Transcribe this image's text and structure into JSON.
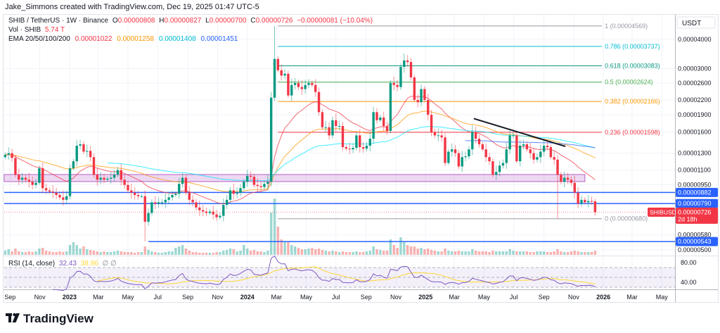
{
  "header": {
    "author_line": "Jake_Simmons created with TradingView.com, Dec 19, 2025 01:47 UTC-5"
  },
  "legend": {
    "symbol": "SHIB / TetherUS · 1W · Binance",
    "o_label": "O",
    "o": "0.00000808",
    "h_label": "H",
    "h": "0.00000827",
    "l_label": "L",
    "l": "0.00000700",
    "c_label": "C",
    "c": "0.00000726",
    "change": "−0.00000081 (−10.04%)",
    "vol_label": "Vol · SHIB",
    "vol": "5.74 T",
    "ema_label": "EMA 20/50/100/200",
    "ema20": "0.00001022",
    "ema50": "0.00001258",
    "ema100": "0.00001408",
    "ema200": "0.00001451",
    "rsi_label": "RSI (14, close)",
    "rsi": "32.43",
    "rsi_ma": "38.96"
  },
  "axis": {
    "currency": "USDT",
    "price_ticks": [
      {
        "label": "0.00004000",
        "value": 4e-05
      },
      {
        "label": "0.00003000",
        "value": 3e-05
      },
      {
        "label": "0.00002600",
        "value": 2.6e-05
      },
      {
        "label": "0.00002200",
        "value": 2.2e-05
      },
      {
        "label": "0.00001900",
        "value": 1.9e-05
      },
      {
        "label": "0.00001600",
        "value": 1.6e-05
      },
      {
        "label": "0.00001300",
        "value": 1.3e-05
      },
      {
        "label": "0.00001100",
        "value": 1.1e-05
      },
      {
        "label": "0.00000950",
        "value": 9.5e-06
      },
      {
        "label": "0.00000580",
        "value": 5.8e-06
      },
      {
        "label": "0.00000500",
        "value": 5e-06
      }
    ],
    "rsi_ticks": [
      {
        "label": "80.00",
        "value": 80
      },
      {
        "label": "40.00",
        "value": 40
      }
    ],
    "time_ticks": [
      {
        "label": "Sep",
        "date": "2022-09-01",
        "major": false
      },
      {
        "label": "Nov",
        "date": "2022-11-01",
        "major": false
      },
      {
        "label": "2023",
        "date": "2023-01-01",
        "major": true
      },
      {
        "label": "Mar",
        "date": "2023-03-01",
        "major": false
      },
      {
        "label": "May",
        "date": "2023-05-01",
        "major": false
      },
      {
        "label": "Jul",
        "date": "2023-07-01",
        "major": false
      },
      {
        "label": "Sep",
        "date": "2023-09-01",
        "major": false
      },
      {
        "label": "Nov",
        "date": "2023-11-01",
        "major": false
      },
      {
        "label": "2024",
        "date": "2024-01-01",
        "major": true
      },
      {
        "label": "Mar",
        "date": "2024-03-01",
        "major": false
      },
      {
        "label": "May",
        "date": "2024-05-01",
        "major": false
      },
      {
        "label": "Jul",
        "date": "2024-07-01",
        "major": false
      },
      {
        "label": "Sep",
        "date": "2024-09-01",
        "major": false
      },
      {
        "label": "Nov",
        "date": "2024-11-01",
        "major": false
      },
      {
        "label": "2025",
        "date": "2025-01-01",
        "major": true
      },
      {
        "label": "Mar",
        "date": "2025-03-01",
        "major": false
      },
      {
        "label": "May",
        "date": "2025-05-01",
        "major": false
      },
      {
        "label": "Jul",
        "date": "2025-07-01",
        "major": false
      },
      {
        "label": "Sep",
        "date": "2025-09-01",
        "major": false
      },
      {
        "label": "Nov",
        "date": "2025-11-01",
        "major": false
      },
      {
        "label": "2026",
        "date": "2026-01-01",
        "major": true
      },
      {
        "label": "Mar",
        "date": "2026-03-01",
        "major": false
      },
      {
        "label": "May",
        "date": "2026-05-01",
        "major": false
      }
    ]
  },
  "price_tags": [
    {
      "label": "0.00000882",
      "value": 8.82e-06,
      "color": "#2962ff"
    },
    {
      "label": "0.00000790",
      "value": 7.9e-06,
      "color": "#2962ff"
    },
    {
      "label": "0.00000543",
      "value": 5.43e-06,
      "color": "#2962ff"
    }
  ],
  "last_price_tag": {
    "symbol": "SHIBUSDT",
    "label": "0.00000726",
    "countdown": "2d 18h",
    "value": 7.26e-06,
    "color": "#f23645"
  },
  "drawings": {
    "fib_start": "2024-03-04",
    "fib_end": "2025-12-29",
    "fib_levels": [
      {
        "label": "1 (0.00004569)",
        "value": 4.569e-05,
        "color": "#9598a1"
      },
      {
        "label": "0.786 (0.00003737)",
        "value": 3.737e-05,
        "color": "#00bcd4"
      },
      {
        "label": "0.618 (0.00003083)",
        "value": 3.083e-05,
        "color": "#089981"
      },
      {
        "label": "0.5 (0.00002624)",
        "value": 2.624e-05,
        "color": "#4caf50"
      },
      {
        "label": "0.382 (0.00002166)",
        "value": 2.166e-05,
        "color": "#ff9800"
      },
      {
        "label": "0.236 (0.00001598)",
        "value": 1.598e-05,
        "color": "#f23645"
      },
      {
        "label": "0 (0.00000680)",
        "value": 6.8e-06,
        "color": "#9598a1"
      }
    ],
    "horizontal_lines": [
      {
        "value": 8.82e-06,
        "start": "2022-08-20",
        "color": "#2962ff"
      },
      {
        "value": 7.9e-06,
        "start": "2022-08-20",
        "color": "#2962ff"
      },
      {
        "value": 5.43e-06,
        "start": "2023-06-12",
        "color": "#2962ff"
      }
    ],
    "zone": {
      "low": 9.82e-06,
      "high": 1.053e-05,
      "start": "2022-08-20",
      "end": "2025-11-24",
      "color": "#9c27b0"
    },
    "trendline": {
      "start": {
        "date": "2025-04-10",
        "price": 1.83e-05
      },
      "end": {
        "date": "2025-10-15",
        "price": 1.39e-05
      },
      "color": "#131722"
    }
  },
  "colors": {
    "up": "#089981",
    "down": "#f23645",
    "ema20": "#f23645",
    "ema50": "#ff9800",
    "ema100": "#00e5ff",
    "ema200": "#2962ff",
    "rsi": "#7e57c2",
    "rsi_ma": "#fdd835"
  },
  "logo": {
    "text": "TradingView"
  },
  "chart_data": {
    "type": "candlestick",
    "interval": "1W",
    "first_bar": "2022-08-22",
    "xlim": [
      "2022-08-20",
      "2026-05-28"
    ],
    "ylim": [
      4.76e-06,
      5.14e-05
    ],
    "yscale": "log",
    "grid": true,
    "first_open": 1.25e-05,
    "close": [
      1.28e-05,
      1.3e-05,
      1.24e-05,
      1.05e-05,
      1e-05,
      1.02e-05,
      1e-05,
      9.8e-06,
      9.5e-06,
      9.7e-06,
      1.12e-05,
      9.2e-06,
      9e-06,
      8.9e-06,
      8.8e-06,
      8.6e-06,
      8.4e-06,
      8.2e-06,
      8.5e-06,
      1.12e-05,
      1.2e-05,
      1.4e-05,
      1.42e-05,
      1.32e-05,
      1.33e-05,
      1.25e-05,
      1.05e-05,
      1e-05,
      1.02e-05,
      1e-05,
      1.01e-05,
      1.02e-05,
      1.05e-05,
      1.1e-05,
      1e-05,
      9.5e-06,
      9e-06,
      8.8e-06,
      8.6e-06,
      8.5e-06,
      8.5e-06,
      6.6e-06,
      7.2e-06,
      8e-06,
      7.9e-06,
      8e-06,
      8e-06,
      8.2e-06,
      8.4e-06,
      8.6e-06,
      8.7e-06,
      9.6e-06,
      1.02e-05,
      8.8e-06,
      8.2e-06,
      8e-06,
      7.6e-06,
      7.4e-06,
      7.3e-06,
      7.2e-06,
      7.3e-06,
      7.1e-06,
      6.9e-06,
      7e-06,
      7.8e-06,
      8.2e-06,
      9e-06,
      8.7e-06,
      8.8e-06,
      9.2e-06,
      9.8e-06,
      1.04e-05,
      1.03e-05,
      9.5e-06,
      9.4e-06,
      9.3e-06,
      9.6e-06,
      9.8e-06,
      2.25e-05,
      3.3e-05,
      2.95e-05,
      2.8e-05,
      2.85e-05,
      2.3e-05,
      2.55e-05,
      2.6e-05,
      2.5e-05,
      2.45e-05,
      2.55e-05,
      2.6e-05,
      2.55e-05,
      2.38e-05,
      1.95e-05,
      1.68e-05,
      1.68e-05,
      1.55e-05,
      1.8e-05,
      1.7e-05,
      1.7e-05,
      1.38e-05,
      1.36e-05,
      1.35e-05,
      1.37e-05,
      1.55e-05,
      1.38e-05,
      1.36e-05,
      1.4e-05,
      1.5e-05,
      1.95e-05,
      1.8e-05,
      1.85e-05,
      1.7e-05,
      1.62e-05,
      2.6e-05,
      2.55e-05,
      2.5e-05,
      3.05e-05,
      3.25e-05,
      3.2e-05,
      2.75e-05,
      2.2e-05,
      2.15e-05,
      2.45e-05,
      2.2e-05,
      1.9e-05,
      1.6e-05,
      1.55e-05,
      1.55e-05,
      1.52e-05,
      1.18e-05,
      1.32e-05,
      1.35e-05,
      1.3e-05,
      1.14e-05,
      1.25e-05,
      1.26e-05,
      1.35e-05,
      1.6e-05,
      1.5e-05,
      1.42e-05,
      1.35e-05,
      1.25e-05,
      1.2e-05,
      1.05e-05,
      1.08e-05,
      1.15e-05,
      1.18e-05,
      1.35e-05,
      1.55e-05,
      1.55e-05,
      1.2e-05,
      1.4e-05,
      1.42e-05,
      1.35e-05,
      1.3e-05,
      1.22e-05,
      1.25e-05,
      1.32e-05,
      1.4e-05,
      1.38e-05,
      1.25e-05,
      1.22e-05,
      1.05e-05,
      9.8e-06,
      1.02e-05,
      1e-05,
      9.7e-06,
      8.8e-06,
      7.9e-06,
      8.2e-06,
      8e-06,
      8.1e-06,
      8.08e-06,
      7.26e-06
    ],
    "wick_extremes": [
      {
        "index": 41,
        "low": 5.43e-06
      },
      {
        "index": 79,
        "high": 4.569e-05
      },
      {
        "index": 162,
        "low": 6.8e-06
      },
      {
        "index": 173,
        "high": 8.27e-06,
        "low": 7e-06
      }
    ],
    "volume_unit": "T",
    "volume": [
      6,
      8,
      5,
      9,
      5,
      4,
      4,
      5,
      4,
      5,
      9,
      10,
      6,
      5,
      4,
      4,
      5,
      4,
      5,
      14,
      18,
      14,
      9,
      12,
      8,
      7,
      6,
      5,
      4,
      5,
      4,
      4,
      5,
      6,
      5,
      4,
      4,
      4,
      3,
      4,
      4,
      12,
      7,
      5,
      4,
      3,
      3,
      4,
      5,
      5,
      10,
      12,
      14,
      9,
      6,
      4,
      4,
      3,
      3,
      3,
      3,
      3,
      4,
      4,
      6,
      7,
      9,
      8,
      5,
      6,
      14,
      9,
      6,
      7,
      5,
      5,
      4,
      6,
      60,
      80,
      40,
      22,
      18,
      18,
      14,
      12,
      10,
      8,
      8,
      9,
      10,
      8,
      9,
      7,
      6,
      5,
      6,
      5,
      4,
      5,
      4,
      4,
      4,
      5,
      4,
      4,
      5,
      6,
      12,
      8,
      7,
      6,
      6,
      22,
      14,
      10,
      25,
      18,
      14,
      12,
      12,
      9,
      10,
      8,
      9,
      7,
      6,
      5,
      5,
      9,
      6,
      5,
      5,
      6,
      5,
      5,
      5,
      8,
      6,
      5,
      5,
      5,
      4,
      6,
      5,
      5,
      5,
      5,
      8,
      6,
      5,
      5,
      5,
      5,
      4,
      4,
      5,
      5,
      5,
      4,
      4,
      5,
      8,
      5,
      4,
      4,
      5,
      6,
      5,
      4,
      4,
      4,
      4,
      5.74
    ],
    "indicators": [
      "EMA 20",
      "EMA 50",
      "EMA 100",
      "EMA 200",
      "RSI 14"
    ]
  }
}
